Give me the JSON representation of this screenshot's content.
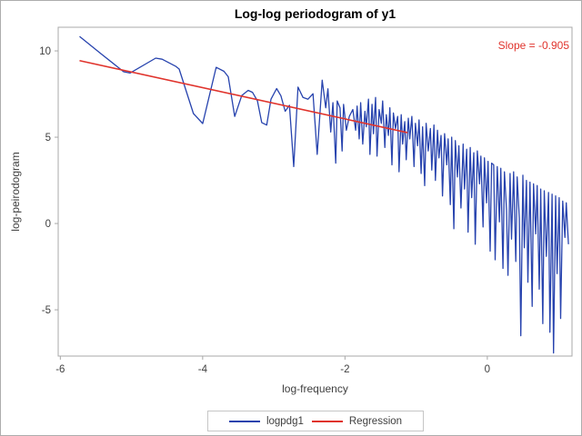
{
  "figure": {
    "title": "Log-log periodogram of y1",
    "annotation": "Slope = -0.905"
  },
  "chart_data": {
    "type": "line",
    "title": "Log-log periodogram of y1",
    "xlabel": "log-frequency",
    "ylabel": "log-peirodogram",
    "x_ticks": [
      -6,
      -4,
      -2,
      0
    ],
    "y_ticks": [
      10,
      5,
      0,
      -5
    ],
    "xlim": [
      -6.03,
      1.19
    ],
    "ylim": [
      -7.68,
      11.37
    ],
    "grid": false,
    "legend_position": "bottom-center",
    "annotation": {
      "text": "Slope = -0.905",
      "color": "#e0332c"
    },
    "axis_color": "#a8a8a8",
    "text_color": "#3f3f3f",
    "series": [
      {
        "name": "logpdg1",
        "color": "#2743ae",
        "points": [
          [
            -5.73,
            10.84
          ],
          [
            -5.43,
            9.84
          ],
          [
            -5.11,
            8.79
          ],
          [
            -5.02,
            8.72
          ],
          [
            -4.66,
            9.58
          ],
          [
            -4.57,
            9.52
          ],
          [
            -4.38,
            9.11
          ],
          [
            -4.33,
            8.95
          ],
          [
            -4.13,
            6.37
          ],
          [
            -4.0,
            5.79
          ],
          [
            -3.81,
            9.05
          ],
          [
            -3.7,
            8.82
          ],
          [
            -3.64,
            8.5
          ],
          [
            -3.55,
            6.2
          ],
          [
            -3.45,
            7.42
          ],
          [
            -3.36,
            7.71
          ],
          [
            -3.3,
            7.6
          ],
          [
            -3.23,
            7.1
          ],
          [
            -3.17,
            5.85
          ],
          [
            -3.1,
            5.7
          ],
          [
            -3.04,
            7.2
          ],
          [
            -2.96,
            7.82
          ],
          [
            -2.9,
            7.4
          ],
          [
            -2.84,
            6.5
          ],
          [
            -2.78,
            6.85
          ],
          [
            -2.72,
            3.3
          ],
          [
            -2.66,
            7.9
          ],
          [
            -2.59,
            7.3
          ],
          [
            -2.52,
            7.2
          ],
          [
            -2.45,
            7.52
          ],
          [
            -2.39,
            4.0
          ],
          [
            -2.32,
            8.3
          ],
          [
            -2.27,
            6.7
          ],
          [
            -2.24,
            7.8
          ],
          [
            -2.2,
            5.3
          ],
          [
            -2.17,
            7.0
          ],
          [
            -2.13,
            3.5
          ],
          [
            -2.11,
            7.1
          ],
          [
            -2.07,
            6.7
          ],
          [
            -2.04,
            4.2
          ],
          [
            -2.02,
            6.9
          ],
          [
            -1.98,
            5.4
          ],
          [
            -1.94,
            6.2
          ],
          [
            -1.89,
            6.6
          ],
          [
            -1.85,
            5.4
          ],
          [
            -1.83,
            6.8
          ],
          [
            -1.8,
            4.9
          ],
          [
            -1.78,
            7.0
          ],
          [
            -1.75,
            4.6
          ],
          [
            -1.72,
            6.5
          ],
          [
            -1.7,
            5.6
          ],
          [
            -1.67,
            7.2
          ],
          [
            -1.65,
            4.0
          ],
          [
            -1.62,
            6.9
          ],
          [
            -1.6,
            5.2
          ],
          [
            -1.57,
            7.3
          ],
          [
            -1.55,
            3.9
          ],
          [
            -1.52,
            6.6
          ],
          [
            -1.49,
            5.8
          ],
          [
            -1.47,
            7.1
          ],
          [
            -1.44,
            4.4
          ],
          [
            -1.42,
            6.3
          ],
          [
            -1.39,
            5.1
          ],
          [
            -1.37,
            6.7
          ],
          [
            -1.34,
            3.4
          ],
          [
            -1.32,
            6.4
          ],
          [
            -1.29,
            5.5
          ],
          [
            -1.26,
            6.2
          ],
          [
            -1.24,
            3.0
          ],
          [
            -1.21,
            6.3
          ],
          [
            -1.19,
            4.6
          ],
          [
            -1.16,
            5.9
          ],
          [
            -1.14,
            3.7
          ],
          [
            -1.11,
            6.1
          ],
          [
            -1.09,
            4.9
          ],
          [
            -1.06,
            6.2
          ],
          [
            -1.03,
            3.3
          ],
          [
            -1.01,
            5.8
          ],
          [
            -0.98,
            4.5
          ],
          [
            -0.96,
            6.0
          ],
          [
            -0.93,
            2.9
          ],
          [
            -0.91,
            5.6
          ],
          [
            -0.88,
            2.2
          ],
          [
            -0.86,
            5.8
          ],
          [
            -0.83,
            4.2
          ],
          [
            -0.8,
            5.5
          ],
          [
            -0.78,
            3.1
          ],
          [
            -0.75,
            5.7
          ],
          [
            -0.73,
            2.5
          ],
          [
            -0.7,
            5.4
          ],
          [
            -0.68,
            3.8
          ],
          [
            -0.65,
            5.1
          ],
          [
            -0.63,
            1.6
          ],
          [
            -0.6,
            5.2
          ],
          [
            -0.57,
            3.4
          ],
          [
            -0.55,
            4.9
          ],
          [
            -0.52,
            1.1
          ],
          [
            -0.5,
            5.0
          ],
          [
            -0.47,
            -0.3
          ],
          [
            -0.45,
            4.8
          ],
          [
            -0.42,
            2.7
          ],
          [
            -0.4,
            4.5
          ],
          [
            -0.37,
            0.9
          ],
          [
            -0.34,
            4.6
          ],
          [
            -0.32,
            2.0
          ],
          [
            -0.29,
            4.3
          ],
          [
            -0.27,
            -0.5
          ],
          [
            -0.24,
            4.4
          ],
          [
            -0.22,
            1.5
          ],
          [
            -0.19,
            4.1
          ],
          [
            -0.17,
            -1.2
          ],
          [
            -0.14,
            4.2
          ],
          [
            -0.11,
            2.3
          ],
          [
            -0.09,
            3.9
          ],
          [
            -0.06,
            -0.2
          ],
          [
            -0.04,
            3.8
          ],
          [
            -0.01,
            1.2
          ],
          [
            0.01,
            3.6
          ],
          [
            0.04,
            -1.6
          ],
          [
            0.06,
            3.5
          ],
          [
            0.09,
            3.4
          ],
          [
            0.11,
            -2.1
          ],
          [
            0.14,
            3.3
          ],
          [
            0.17,
            0.1
          ],
          [
            0.19,
            3.2
          ],
          [
            0.22,
            -2.6
          ],
          [
            0.24,
            3.0
          ],
          [
            0.27,
            0.8
          ],
          [
            0.29,
            -3.0
          ],
          [
            0.32,
            2.9
          ],
          [
            0.34,
            -0.9
          ],
          [
            0.37,
            3.0
          ],
          [
            0.4,
            -2.2
          ],
          [
            0.42,
            2.7
          ],
          [
            0.45,
            0.3
          ],
          [
            0.47,
            -6.5
          ],
          [
            0.5,
            2.8
          ],
          [
            0.52,
            -1.4
          ],
          [
            0.55,
            2.5
          ],
          [
            0.57,
            -3.4
          ],
          [
            0.6,
            2.4
          ],
          [
            0.63,
            -4.8
          ],
          [
            0.65,
            2.3
          ],
          [
            0.68,
            -0.6
          ],
          [
            0.7,
            2.2
          ],
          [
            0.73,
            -3.8
          ],
          [
            0.75,
            2.0
          ],
          [
            0.78,
            -5.8
          ],
          [
            0.8,
            1.9
          ],
          [
            0.83,
            -1.9
          ],
          [
            0.86,
            1.8
          ],
          [
            0.88,
            -6.3
          ],
          [
            0.91,
            1.7
          ],
          [
            0.93,
            -7.5
          ],
          [
            0.96,
            1.6
          ],
          [
            0.98,
            -2.9
          ],
          [
            1.01,
            1.5
          ],
          [
            1.03,
            -5.5
          ],
          [
            1.06,
            1.3
          ],
          [
            1.09,
            -0.8
          ],
          [
            1.11,
            1.2
          ],
          [
            1.14,
            -1.2
          ]
        ]
      },
      {
        "name": "Regression",
        "color": "#e0332c",
        "slope": -0.905,
        "intercept": 4.25,
        "x_start": -5.73,
        "x_end": -1.12
      }
    ]
  }
}
